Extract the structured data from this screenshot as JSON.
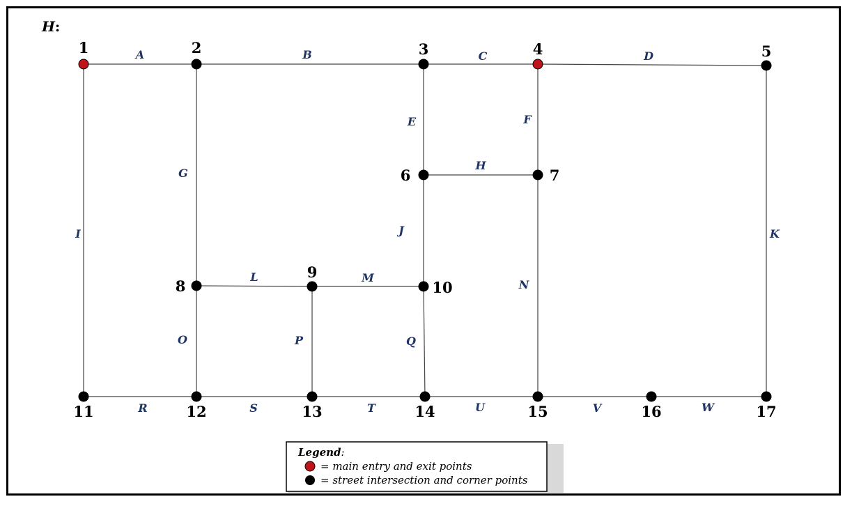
{
  "graph_name": "H",
  "graph_name_suffix": ":",
  "colors": {
    "entry_exit": "#c0141a",
    "intersection": "#000000",
    "edge_label": "#1f3464"
  },
  "nodes": [
    {
      "id": "1",
      "type": "entry_exit"
    },
    {
      "id": "2",
      "type": "intersection"
    },
    {
      "id": "3",
      "type": "intersection"
    },
    {
      "id": "4",
      "type": "entry_exit"
    },
    {
      "id": "5",
      "type": "intersection"
    },
    {
      "id": "6",
      "type": "intersection"
    },
    {
      "id": "7",
      "type": "intersection"
    },
    {
      "id": "8",
      "type": "intersection"
    },
    {
      "id": "9",
      "type": "intersection"
    },
    {
      "id": "10",
      "type": "intersection"
    },
    {
      "id": "11",
      "type": "intersection"
    },
    {
      "id": "12",
      "type": "intersection"
    },
    {
      "id": "13",
      "type": "intersection"
    },
    {
      "id": "14",
      "type": "intersection"
    },
    {
      "id": "15",
      "type": "intersection"
    },
    {
      "id": "16",
      "type": "intersection"
    },
    {
      "id": "17",
      "type": "intersection"
    }
  ],
  "edges": [
    {
      "label": "A",
      "from": "1",
      "to": "2"
    },
    {
      "label": "B",
      "from": "2",
      "to": "3"
    },
    {
      "label": "C",
      "from": "3",
      "to": "4"
    },
    {
      "label": "D",
      "from": "4",
      "to": "5"
    },
    {
      "label": "E",
      "from": "3",
      "to": "6"
    },
    {
      "label": "F",
      "from": "4",
      "to": "7"
    },
    {
      "label": "G",
      "from": "2",
      "to": "8"
    },
    {
      "label": "H",
      "from": "6",
      "to": "7"
    },
    {
      "label": "I",
      "from": "1",
      "to": "11"
    },
    {
      "label": "J",
      "from": "6",
      "to": "10"
    },
    {
      "label": "K",
      "from": "5",
      "to": "17"
    },
    {
      "label": "L",
      "from": "8",
      "to": "9"
    },
    {
      "label": "M",
      "from": "9",
      "to": "10"
    },
    {
      "label": "N",
      "from": "7",
      "to": "15"
    },
    {
      "label": "O",
      "from": "8",
      "to": "12"
    },
    {
      "label": "P",
      "from": "9",
      "to": "13"
    },
    {
      "label": "Q",
      "from": "10",
      "to": "14"
    },
    {
      "label": "R",
      "from": "11",
      "to": "12"
    },
    {
      "label": "S",
      "from": "12",
      "to": "13"
    },
    {
      "label": "T",
      "from": "13",
      "to": "14"
    },
    {
      "label": "U",
      "from": "14",
      "to": "15"
    },
    {
      "label": "V",
      "from": "15",
      "to": "16"
    },
    {
      "label": "W",
      "from": "16",
      "to": "17"
    }
  ],
  "legend": {
    "title": "Legend",
    "title_suffix": ":",
    "items": [
      {
        "type": "entry_exit",
        "text": "= main entry and exit points"
      },
      {
        "type": "intersection",
        "text": "= street intersection and corner points"
      }
    ]
  }
}
